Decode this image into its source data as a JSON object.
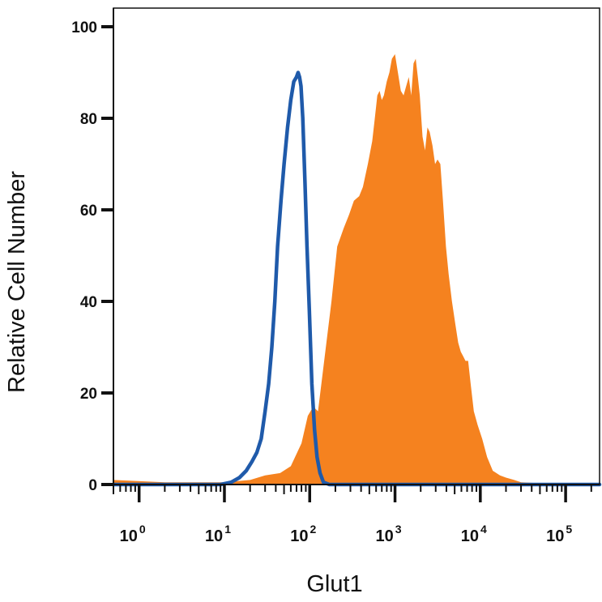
{
  "chart_data": {
    "type": "area",
    "title": "",
    "xlabel": "Glut1",
    "ylabel": "Relative Cell Number",
    "xscale": "log",
    "xlim": [
      0.5,
      250000
    ],
    "ylim": [
      0,
      100
    ],
    "y_ticks": [
      0,
      20,
      40,
      60,
      80,
      100
    ],
    "x_ticks": [
      {
        "value": 1,
        "base": "10",
        "exp": "0"
      },
      {
        "value": 10,
        "base": "10",
        "exp": "1"
      },
      {
        "value": 100,
        "base": "10",
        "exp": "2"
      },
      {
        "value": 1000,
        "base": "10",
        "exp": "3"
      },
      {
        "value": 10000,
        "base": "10",
        "exp": "4"
      },
      {
        "value": 100000,
        "base": "10",
        "exp": "5"
      }
    ],
    "grid": false,
    "legend": "none",
    "series": [
      {
        "style": "filled",
        "color": "#F5821F",
        "points": [
          [
            0.5,
            1
          ],
          [
            2,
            0.5
          ],
          [
            10,
            0.5
          ],
          [
            20,
            1
          ],
          [
            30,
            2
          ],
          [
            45,
            2.5
          ],
          [
            60,
            4
          ],
          [
            80,
            9
          ],
          [
            95,
            15
          ],
          [
            110,
            17
          ],
          [
            125,
            16
          ],
          [
            150,
            28
          ],
          [
            180,
            40
          ],
          [
            210,
            52
          ],
          [
            250,
            56
          ],
          [
            290,
            59
          ],
          [
            330,
            62
          ],
          [
            380,
            63
          ],
          [
            420,
            65
          ],
          [
            480,
            70
          ],
          [
            540,
            75
          ],
          [
            580,
            80
          ],
          [
            620,
            85
          ],
          [
            660,
            86
          ],
          [
            700,
            84
          ],
          [
            740,
            85
          ],
          [
            800,
            88
          ],
          [
            860,
            90
          ],
          [
            920,
            93
          ],
          [
            1000,
            94
          ],
          [
            1080,
            90
          ],
          [
            1170,
            86
          ],
          [
            1260,
            85
          ],
          [
            1350,
            87
          ],
          [
            1450,
            89
          ],
          [
            1550,
            85
          ],
          [
            1650,
            92
          ],
          [
            1750,
            93
          ],
          [
            1850,
            89
          ],
          [
            1950,
            85
          ],
          [
            2100,
            76
          ],
          [
            2250,
            73
          ],
          [
            2400,
            78
          ],
          [
            2550,
            77
          ],
          [
            2750,
            74
          ],
          [
            2950,
            70
          ],
          [
            3150,
            71
          ],
          [
            3400,
            70
          ],
          [
            3650,
            62
          ],
          [
            3950,
            52
          ],
          [
            4250,
            46
          ],
          [
            4650,
            40
          ],
          [
            5100,
            35
          ],
          [
            5500,
            31
          ],
          [
            5900,
            29
          ],
          [
            6300,
            28
          ],
          [
            6700,
            27
          ],
          [
            7200,
            27
          ],
          [
            7700,
            22
          ],
          [
            8400,
            16
          ],
          [
            9300,
            13
          ],
          [
            10500,
            10
          ],
          [
            12000,
            6
          ],
          [
            14000,
            3
          ],
          [
            17000,
            2
          ],
          [
            20000,
            1.5
          ],
          [
            25000,
            1
          ],
          [
            30000,
            0.5
          ],
          [
            100000,
            0
          ],
          [
            250000,
            0
          ]
        ]
      },
      {
        "style": "line",
        "color": "#1F5AAA",
        "points": [
          [
            0.5,
            0
          ],
          [
            5,
            0
          ],
          [
            9,
            0
          ],
          [
            12,
            0.5
          ],
          [
            15,
            1.5
          ],
          [
            18,
            3
          ],
          [
            21,
            5
          ],
          [
            24,
            7
          ],
          [
            27,
            10
          ],
          [
            30,
            16
          ],
          [
            33,
            22
          ],
          [
            36,
            30
          ],
          [
            39,
            40
          ],
          [
            42,
            52
          ],
          [
            46,
            62
          ],
          [
            50,
            70
          ],
          [
            55,
            78
          ],
          [
            60,
            84
          ],
          [
            65,
            88
          ],
          [
            70,
            89
          ],
          [
            73,
            90
          ],
          [
            76,
            89
          ],
          [
            79,
            87
          ],
          [
            83,
            80
          ],
          [
            88,
            66
          ],
          [
            93,
            52
          ],
          [
            99,
            38
          ],
          [
            106,
            22
          ],
          [
            114,
            12
          ],
          [
            122,
            6
          ],
          [
            132,
            2.5
          ],
          [
            145,
            0.5
          ],
          [
            170,
            0
          ],
          [
            5000,
            0
          ],
          [
            250000,
            0
          ]
        ]
      }
    ]
  }
}
